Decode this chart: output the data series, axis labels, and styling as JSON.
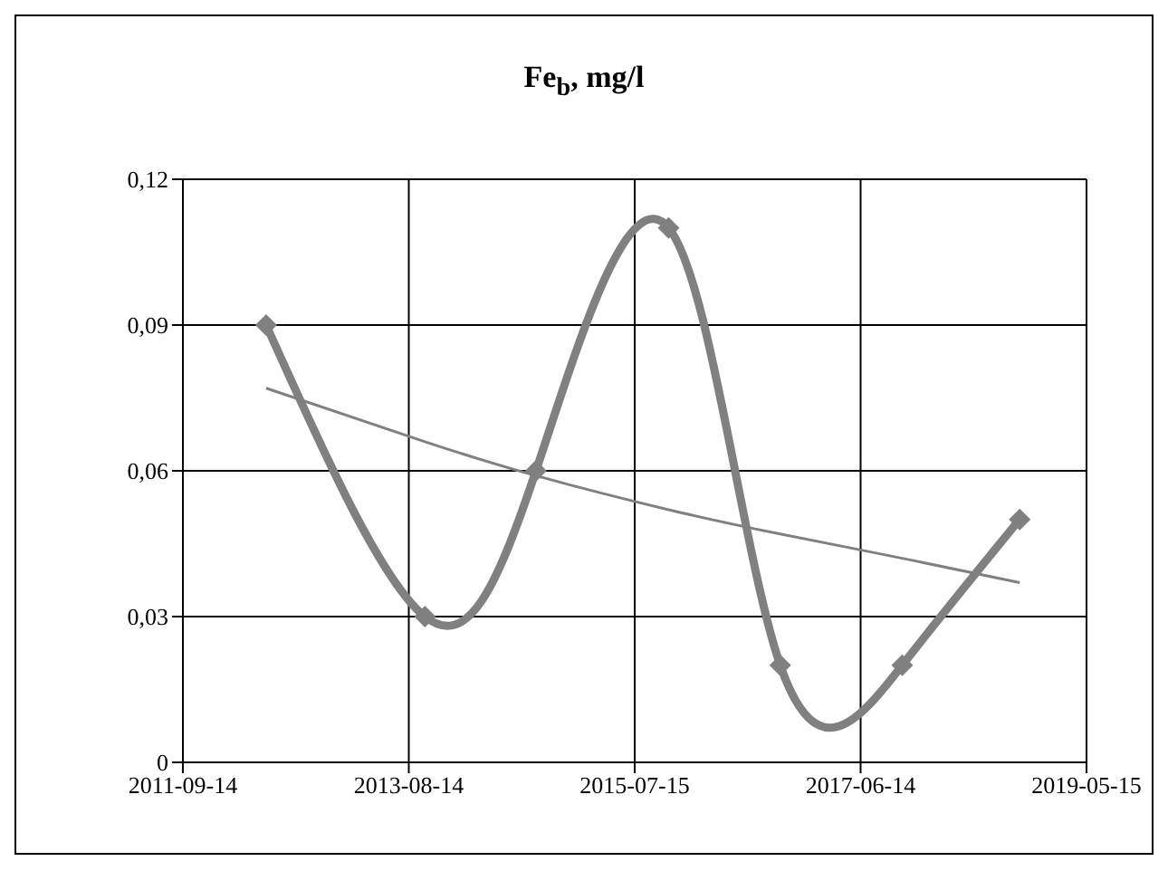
{
  "chart_data": {
    "type": "line",
    "title": "Fe$_{b}$, mg/l",
    "xlim": [
      "2011-09-14",
      "2019-05-15"
    ],
    "xticks": [
      "2011-09-14",
      "2013-08-14",
      "2015-07-15",
      "2017-06-14",
      "2019-05-15"
    ],
    "ylim": [
      0,
      0.12
    ],
    "yticks": [
      0,
      {
        "value": 0.03,
        "label": "0,03"
      },
      {
        "value": 0.06,
        "label": "0,06"
      },
      {
        "value": 0.09,
        "label": "0,09"
      },
      {
        "value": 0.12,
        "label": "0,12"
      }
    ],
    "grid": true,
    "legend": false,
    "x": [
      "2012-05-29",
      "2013-10-03",
      "2014-09-12",
      "2015-10-28",
      "2016-10-08",
      "2017-10-21",
      "2018-10-20"
    ],
    "series": [
      {
        "color": "#808080",
        "values": [
          0.09,
          0.03,
          0.06,
          0.11,
          0.02,
          0.02,
          0.05
        ],
        "marker": "diamond",
        "line_style": "solid"
      },
      {
        "type": "line",
        "color": "#808080",
        "values": [
          0.077,
          0.066,
          0.059,
          0.052,
          0.047,
          0.042,
          0.037
        ],
        "marker": "none",
        "line_style": "solid"
      }
    ]
  }
}
